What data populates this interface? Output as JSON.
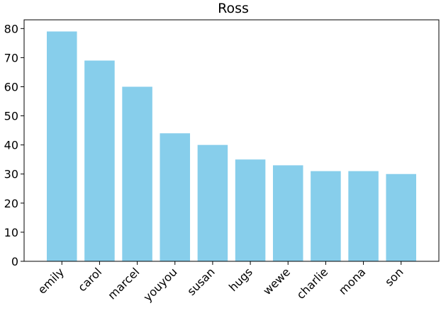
{
  "chart_data": {
    "type": "bar",
    "title": "Ross",
    "categories": [
      "emily",
      "carol",
      "marcel",
      "youyou",
      "susan",
      "hugs",
      "wewe",
      "charlie",
      "mona",
      "son"
    ],
    "values": [
      79,
      69,
      60,
      44,
      40,
      35,
      33,
      31,
      31,
      30
    ],
    "xlabel": "",
    "ylabel": "",
    "ylim": [
      0,
      83
    ],
    "yticks": [
      0,
      10,
      20,
      30,
      40,
      50,
      60,
      70,
      80
    ],
    "grid": false,
    "legend": "none",
    "bar_color": "#87ceeb"
  }
}
